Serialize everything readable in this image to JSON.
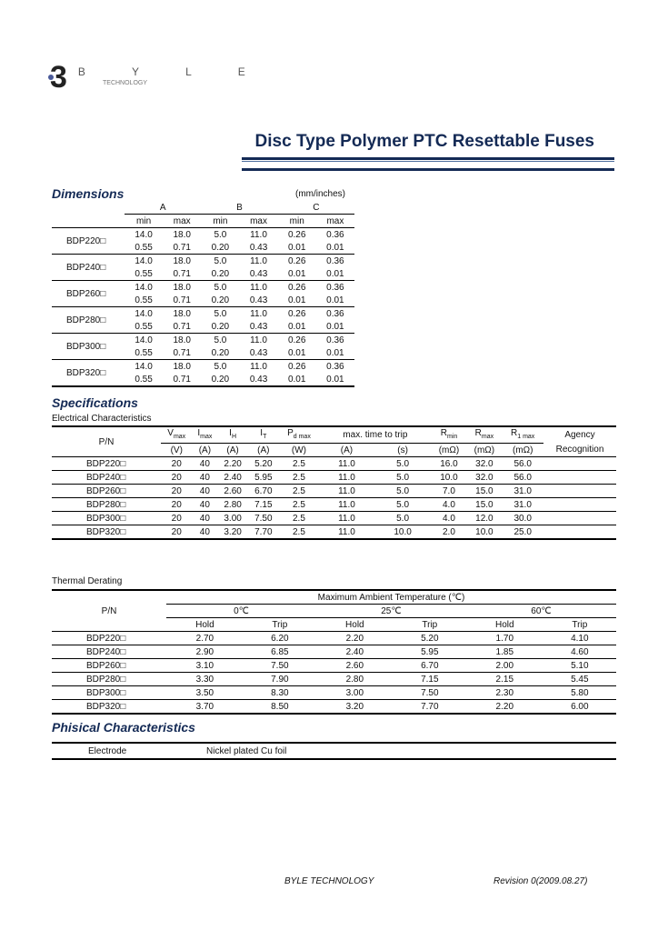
{
  "logo": {
    "letters": "BYLE",
    "text": "BYLE",
    "tagline": "TECHNOLOGY"
  },
  "title": "Disc Type Polymer PTC Resettable Fuses",
  "dimensions": {
    "heading": "Dimensions",
    "unit": "(mm/inches)",
    "groups": [
      "A",
      "B",
      "C"
    ],
    "subheaders": [
      "min",
      "max",
      "min",
      "max",
      "min",
      "max"
    ],
    "rows": [
      {
        "pn": "BDP220□",
        "mm": [
          "14.0",
          "18.0",
          "5.0",
          "11.0",
          "0.26",
          "0.36"
        ],
        "in": [
          "0.55",
          "0.71",
          "0.20",
          "0.43",
          "0.01",
          "0.01"
        ]
      },
      {
        "pn": "BDP240□",
        "mm": [
          "14.0",
          "18.0",
          "5.0",
          "11.0",
          "0.26",
          "0.36"
        ],
        "in": [
          "0.55",
          "0.71",
          "0.20",
          "0.43",
          "0.01",
          "0.01"
        ]
      },
      {
        "pn": "BDP260□",
        "mm": [
          "14.0",
          "18.0",
          "5.0",
          "11.0",
          "0.26",
          "0.36"
        ],
        "in": [
          "0.55",
          "0.71",
          "0.20",
          "0.43",
          "0.01",
          "0.01"
        ]
      },
      {
        "pn": "BDP280□",
        "mm": [
          "14.0",
          "18.0",
          "5.0",
          "11.0",
          "0.26",
          "0.36"
        ],
        "in": [
          "0.55",
          "0.71",
          "0.20",
          "0.43",
          "0.01",
          "0.01"
        ]
      },
      {
        "pn": "BDP300□",
        "mm": [
          "14.0",
          "18.0",
          "5.0",
          "11.0",
          "0.26",
          "0.36"
        ],
        "in": [
          "0.55",
          "0.71",
          "0.20",
          "0.43",
          "0.01",
          "0.01"
        ]
      },
      {
        "pn": "BDP320□",
        "mm": [
          "14.0",
          "18.0",
          "5.0",
          "11.0",
          "0.26",
          "0.36"
        ],
        "in": [
          "0.55",
          "0.71",
          "0.20",
          "0.43",
          "0.01",
          "0.01"
        ]
      }
    ]
  },
  "specifications": {
    "heading": "Specifications",
    "electrical_label": "Electrical Characteristics",
    "headers": {
      "pn": "P/N",
      "vmax": "V",
      "vmax_sub": "max",
      "imax": "I",
      "imax_sub": "max",
      "ih": "I",
      "ih_sub": "H",
      "it": "I",
      "it_sub": "T",
      "pd": "P",
      "pd_sub": "d max",
      "ttt": "max. time to trip",
      "rmin": "R",
      "rmin_sub": "min",
      "rmax": "R",
      "rmax_sub": "max",
      "r1": "R",
      "r1_sub": "1 max",
      "agency": "Agency",
      "agency2": "Recognition"
    },
    "units": [
      "(V)",
      "(A)",
      "(A)",
      "(A)",
      "(W)",
      "(A)",
      "(s)",
      "(mΩ)",
      "(mΩ)",
      "(mΩ)"
    ],
    "rows": [
      {
        "pn": "BDP220□",
        "v": [
          "20",
          "40",
          "2.20",
          "5.20",
          "2.5",
          "11.0",
          "5.0",
          "16.0",
          "32.0",
          "56.0"
        ]
      },
      {
        "pn": "BDP240□",
        "v": [
          "20",
          "40",
          "2.40",
          "5.95",
          "2.5",
          "11.0",
          "5.0",
          "10.0",
          "32.0",
          "56.0"
        ]
      },
      {
        "pn": "BDP260□",
        "v": [
          "20",
          "40",
          "2.60",
          "6.70",
          "2.5",
          "11.0",
          "5.0",
          "7.0",
          "15.0",
          "31.0"
        ]
      },
      {
        "pn": "BDP280□",
        "v": [
          "20",
          "40",
          "2.80",
          "7.15",
          "2.5",
          "11.0",
          "5.0",
          "4.0",
          "15.0",
          "31.0"
        ]
      },
      {
        "pn": "BDP300□",
        "v": [
          "20",
          "40",
          "3.00",
          "7.50",
          "2.5",
          "11.0",
          "5.0",
          "4.0",
          "12.0",
          "30.0"
        ]
      },
      {
        "pn": "BDP320□",
        "v": [
          "20",
          "40",
          "3.20",
          "7.70",
          "2.5",
          "11.0",
          "10.0",
          "2.0",
          "10.0",
          "25.0"
        ]
      }
    ]
  },
  "thermal": {
    "label": "Thermal Derating",
    "pn": "P/N",
    "header": "Maximum Ambient Temperature (℃)",
    "temps": [
      "0℃",
      "25℃",
      "60℃"
    ],
    "sub": [
      "Hold",
      "Trip",
      "Hold",
      "Trip",
      "Hold",
      "Trip"
    ],
    "rows": [
      {
        "pn": "BDP220□",
        "v": [
          "2.70",
          "6.20",
          "2.20",
          "5.20",
          "1.70",
          "4.10"
        ]
      },
      {
        "pn": "BDP240□",
        "v": [
          "2.90",
          "6.85",
          "2.40",
          "5.95",
          "1.85",
          "4.60"
        ]
      },
      {
        "pn": "BDP260□",
        "v": [
          "3.10",
          "7.50",
          "2.60",
          "6.70",
          "2.00",
          "5.10"
        ]
      },
      {
        "pn": "BDP280□",
        "v": [
          "3.30",
          "7.90",
          "2.80",
          "7.15",
          "2.15",
          "5.45"
        ]
      },
      {
        "pn": "BDP300□",
        "v": [
          "3.50",
          "8.30",
          "3.00",
          "7.50",
          "2.30",
          "5.80"
        ]
      },
      {
        "pn": "BDP320□",
        "v": [
          "3.70",
          "8.50",
          "3.20",
          "7.70",
          "2.20",
          "6.00"
        ]
      }
    ]
  },
  "physical": {
    "heading": "Phisical Characteristics",
    "label": "Electrode",
    "value": "Nickel plated Cu foil"
  },
  "footer": {
    "company": "BYLE TECHNOLOGY",
    "revision": "Revision 0(2009.08.27)"
  }
}
